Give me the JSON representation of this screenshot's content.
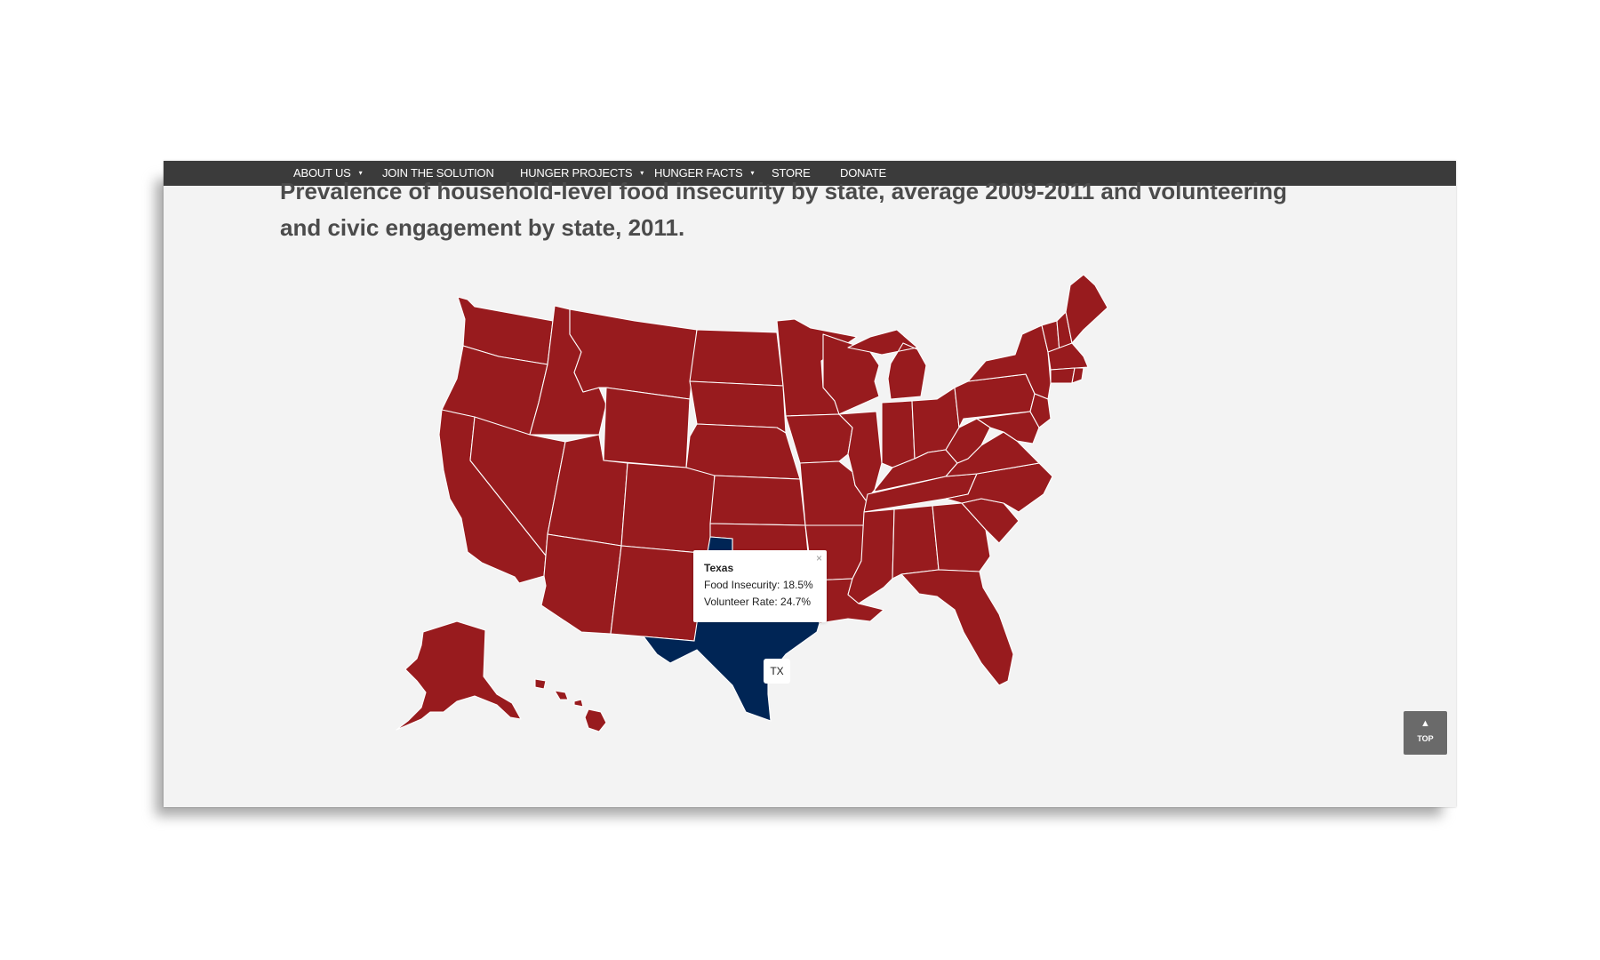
{
  "nav": {
    "items": [
      {
        "label": "ABOUT US",
        "has_caret": true
      },
      {
        "label": "JOIN THE SOLUTION",
        "has_caret": false
      },
      {
        "label": "HUNGER PROJECTS",
        "has_caret": true
      },
      {
        "label": "HUNGER FACTS",
        "has_caret": true
      },
      {
        "label": "STORE",
        "has_caret": false
      },
      {
        "label": "DONATE",
        "has_caret": false
      }
    ],
    "caret_glyph": "▾"
  },
  "page": {
    "title": "Prevalence of household-level food insecurity by state, average 2009-2011 and volunteering and civic engagement by state, 2011."
  },
  "map": {
    "state_fill": "#981b1e",
    "selected_fill": "#002555",
    "selected_state": "Texas",
    "selected_abbr": "TX"
  },
  "tooltip": {
    "title": "Texas",
    "food_insecurity": "Food Insecurity: 18.5%",
    "volunteer_rate": "Volunteer Rate: 24.7%",
    "close_glyph": "×"
  },
  "top_button": {
    "arrow_icon": "chevron-up-icon",
    "arrow_glyph": "▲",
    "label": "TOP"
  }
}
